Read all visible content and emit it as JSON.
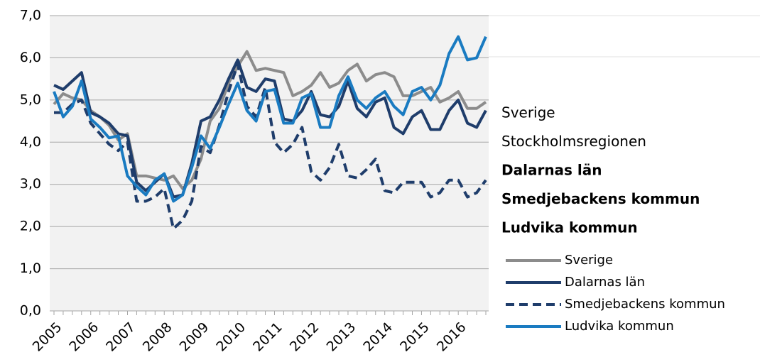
{
  "chart_data": {
    "type": "line",
    "categories": [
      "2005",
      null,
      null,
      null,
      "2006",
      null,
      null,
      null,
      "2007",
      null,
      null,
      null,
      "2008",
      null,
      null,
      null,
      "2009",
      null,
      null,
      null,
      "2010",
      null,
      null,
      null,
      "2011",
      null,
      null,
      null,
      "2012",
      null,
      null,
      null,
      "2013",
      null,
      null,
      null,
      "2014",
      null,
      null,
      null,
      "2015",
      null,
      null,
      null,
      "2016",
      null,
      null,
      null
    ],
    "ylim": [
      0,
      7
    ],
    "yticks": [
      {
        "value": 0,
        "label": "0,0"
      },
      {
        "value": 1,
        "label": "1,0"
      },
      {
        "value": 2,
        "label": "2,0"
      },
      {
        "value": 3,
        "label": "3,0"
      },
      {
        "value": 4,
        "label": "4,0"
      },
      {
        "value": 5,
        "label": "5,0"
      },
      {
        "value": 6,
        "label": "6,0"
      },
      {
        "value": 7,
        "label": "7,0"
      }
    ],
    "grid": true,
    "side_labels": [
      {
        "text": "Sverige",
        "bold": false
      },
      {
        "text": "Stockholmsregionen",
        "bold": false
      },
      {
        "text": "Dalarnas län",
        "bold": true
      },
      {
        "text": "Smedjebackens kommun",
        "bold": true
      },
      {
        "text": "Ludvika kommun",
        "bold": true
      }
    ],
    "series": [
      {
        "name": "Sverige",
        "color": "#8c8c8c",
        "dashed": false,
        "values": [
          4.9,
          5.15,
          5.05,
          5.0,
          4.75,
          4.6,
          4.4,
          4.05,
          4.2,
          3.2,
          3.2,
          3.15,
          3.1,
          3.2,
          2.9,
          3.1,
          3.6,
          4.5,
          4.8,
          5.4,
          5.8,
          6.15,
          5.7,
          5.75,
          5.7,
          5.65,
          5.1,
          5.2,
          5.35,
          5.65,
          5.3,
          5.4,
          5.7,
          5.85,
          5.45,
          5.6,
          5.65,
          5.55,
          5.1,
          5.1,
          5.2,
          5.3,
          4.95,
          5.05,
          5.2,
          4.8,
          4.8,
          4.95
        ]
      },
      {
        "name": "Dalarnas län",
        "color": "#1f3d6b",
        "dashed": false,
        "values": [
          5.35,
          5.25,
          5.45,
          5.65,
          4.7,
          4.6,
          4.45,
          4.2,
          4.15,
          3.05,
          2.85,
          3.05,
          3.25,
          2.7,
          2.75,
          3.5,
          4.5,
          4.6,
          5.0,
          5.5,
          5.95,
          5.3,
          5.2,
          5.5,
          5.45,
          4.55,
          4.5,
          4.75,
          5.2,
          4.65,
          4.6,
          4.85,
          5.45,
          4.8,
          4.6,
          4.95,
          5.05,
          4.35,
          4.2,
          4.6,
          4.75,
          4.3,
          4.3,
          4.75,
          5.0,
          4.45,
          4.35,
          4.75
        ]
      },
      {
        "name": "Smedjebackens kommun",
        "color": "#1f3d6b",
        "dashed": true,
        "values": [
          4.7,
          4.7,
          4.9,
          5.0,
          4.45,
          4.2,
          3.95,
          3.8,
          4.0,
          2.6,
          2.6,
          2.7,
          2.9,
          1.95,
          2.15,
          2.6,
          3.9,
          3.75,
          4.4,
          5.2,
          5.85,
          4.85,
          4.6,
          5.3,
          4.0,
          3.75,
          3.95,
          4.35,
          3.3,
          3.1,
          3.4,
          3.95,
          3.2,
          3.15,
          3.35,
          3.6,
          2.85,
          2.8,
          3.05,
          3.05,
          3.05,
          2.7,
          2.8,
          3.1,
          3.1,
          2.7,
          2.8,
          3.1
        ]
      },
      {
        "name": "Ludvika kommun",
        "color": "#1a7bc1",
        "dashed": false,
        "values": [
          5.2,
          4.6,
          4.85,
          5.45,
          4.55,
          4.35,
          4.1,
          4.15,
          3.2,
          2.95,
          2.75,
          3.1,
          3.25,
          2.6,
          2.75,
          3.4,
          4.15,
          3.85,
          4.35,
          4.9,
          5.4,
          4.75,
          4.5,
          5.2,
          5.25,
          4.45,
          4.45,
          5.05,
          5.15,
          4.35,
          4.35,
          5.1,
          5.55,
          5.0,
          4.8,
          5.05,
          5.2,
          4.85,
          4.65,
          5.2,
          5.3,
          5.0,
          5.35,
          6.1,
          6.5,
          5.95,
          6.0,
          6.5
        ]
      }
    ]
  }
}
